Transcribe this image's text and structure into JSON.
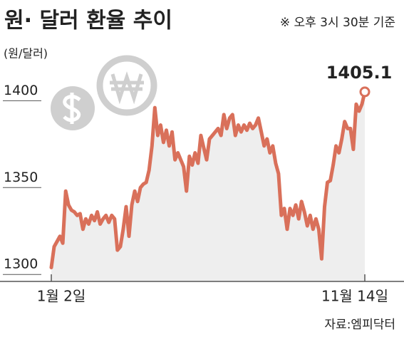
{
  "chart_data": {
    "type": "line",
    "title": "원· 달러 환율 추이",
    "note": "※ 오후 3시 30분 기준",
    "y_label": "(원/달러)",
    "source": "자료:엠피닥터",
    "categories": [
      "1월 2일",
      null,
      null,
      null,
      null,
      null,
      null,
      null,
      null,
      null,
      null,
      null,
      null,
      null,
      null,
      null,
      null,
      null,
      null,
      null,
      null,
      null,
      null,
      null,
      null,
      null,
      null,
      null,
      null,
      null,
      null,
      null,
      null,
      null,
      null,
      null,
      null,
      null,
      null,
      null,
      null,
      null,
      null,
      null,
      null,
      null,
      null,
      null,
      null,
      null,
      null,
      null,
      null,
      null,
      null,
      null,
      null,
      null,
      null,
      null,
      null,
      null,
      null,
      null,
      null,
      null,
      null,
      null,
      null,
      null,
      null,
      null,
      null,
      null,
      null,
      null,
      null,
      null,
      null,
      null,
      null,
      null,
      null,
      null,
      null,
      null,
      null,
      null,
      null,
      null,
      null,
      null,
      null,
      null,
      null,
      null,
      null,
      null,
      null,
      null,
      null,
      null,
      null,
      null,
      null,
      null,
      null,
      null,
      null,
      "11월 14일"
    ],
    "series": [
      {
        "name": "원·달러 환율",
        "color": "#d9705a",
        "values": [
          1304,
          1316,
          1319,
          1322,
          1318,
          1348,
          1340,
          1337,
          1336,
          1334,
          1335,
          1326,
          1332,
          1329,
          1334,
          1331,
          1336,
          1329,
          1332,
          1334,
          1330,
          1334,
          1332,
          1314,
          1316,
          1326,
          1339,
          1322,
          1340,
          1348,
          1342,
          1350,
          1352,
          1353,
          1360,
          1374,
          1396,
          1380,
          1386,
          1376,
          1383,
          1374,
          1382,
          1366,
          1370,
          1366,
          1362,
          1348,
          1368,
          1363,
          1370,
          1364,
          1380,
          1373,
          1366,
          1378,
          1380,
          1382,
          1384,
          1380,
          1392,
          1384,
          1390,
          1392,
          1380,
          1386,
          1382,
          1386,
          1383,
          1387,
          1384,
          1386,
          1390,
          1382,
          1374,
          1378,
          1370,
          1374,
          1364,
          1358,
          1334,
          1338,
          1326,
          1338,
          1334,
          1340,
          1332,
          1342,
          1336,
          1328,
          1334,
          1326,
          1332,
          1326,
          1309,
          1339,
          1353,
          1354,
          1363,
          1374,
          1370,
          1378,
          1388,
          1384,
          1384,
          1372,
          1398,
          1394,
          1398,
          1405.1
        ]
      }
    ],
    "labeled_point": 109,
    "ylim": [
      1296,
      1419
    ],
    "yticks": [
      1300,
      1350,
      1400
    ],
    "area_color": "#eeeeee",
    "grid": false
  }
}
